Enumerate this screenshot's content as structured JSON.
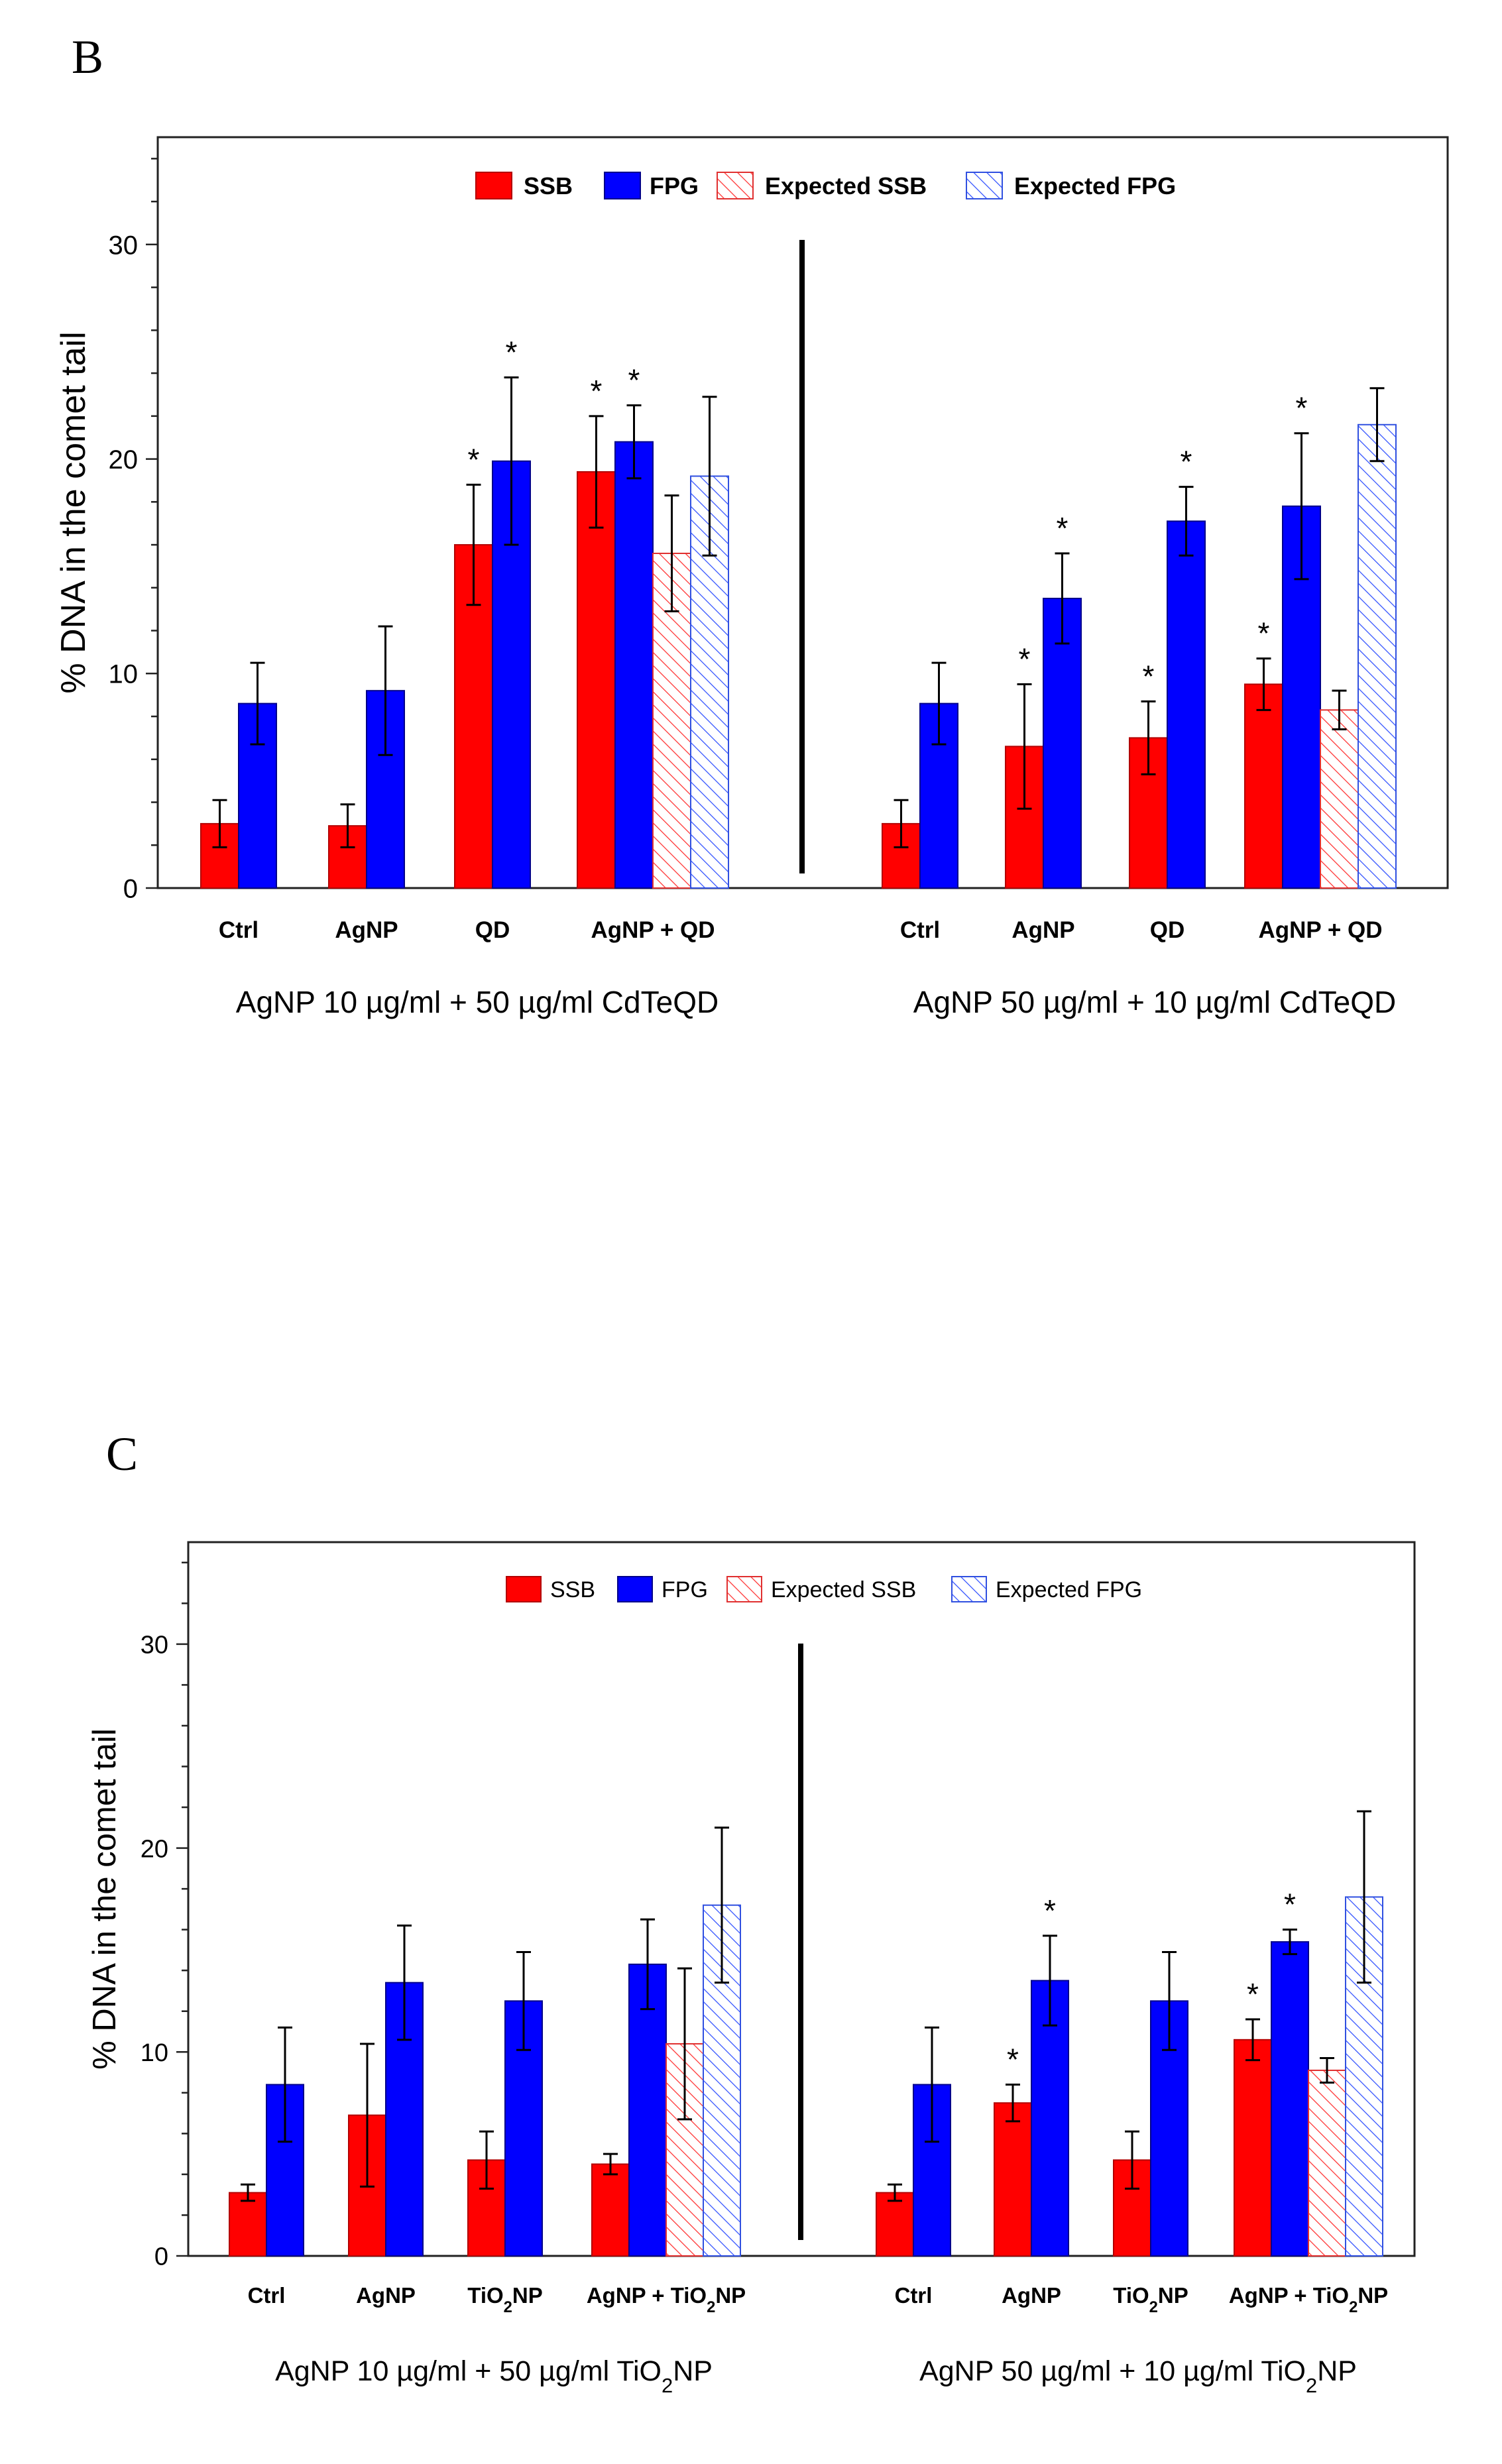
{
  "chart_data": [
    {
      "panel_label": "B",
      "type": "bar",
      "ylabel": "% DNA in the comet tail",
      "ylim": [
        0,
        35
      ],
      "yticks": [
        0,
        10,
        20,
        30
      ],
      "legend": [
        "SSB",
        "FPG",
        "Expected SSB",
        "Expected FPG"
      ],
      "groups": [
        {
          "label": "AgNP 10 µg/ml + 50 µg/ml CdTeQD",
          "categories": [
            {
              "label": "Ctrl",
              "bars": [
                {
                  "series": "SSB",
                  "value": 3.0,
                  "err": 1.1,
                  "star": false
                },
                {
                  "series": "FPG",
                  "value": 8.6,
                  "err": 1.9,
                  "star": false
                }
              ]
            },
            {
              "label": "AgNP",
              "bars": [
                {
                  "series": "SSB",
                  "value": 2.9,
                  "err": 1.0,
                  "star": false
                },
                {
                  "series": "FPG",
                  "value": 9.2,
                  "err": 3.0,
                  "star": false
                }
              ]
            },
            {
              "label": "QD",
              "bars": [
                {
                  "series": "SSB",
                  "value": 16.0,
                  "err": 2.8,
                  "star": true
                },
                {
                  "series": "FPG",
                  "value": 19.9,
                  "err": 3.9,
                  "star": true
                }
              ]
            },
            {
              "label": "AgNP + QD",
              "bars": [
                {
                  "series": "SSB",
                  "value": 19.4,
                  "err": 2.6,
                  "star": true
                },
                {
                  "series": "FPG",
                  "value": 20.8,
                  "err": 1.7,
                  "star": true
                },
                {
                  "series": "Expected SSB",
                  "value": 15.6,
                  "err": 2.7,
                  "star": false
                },
                {
                  "series": "Expected FPG",
                  "value": 19.2,
                  "err": 3.7,
                  "star": false
                }
              ]
            }
          ]
        },
        {
          "label": "AgNP 50 µg/ml + 10 µg/ml CdTeQD",
          "categories": [
            {
              "label": "Ctrl",
              "bars": [
                {
                  "series": "SSB",
                  "value": 3.0,
                  "err": 1.1,
                  "star": false
                },
                {
                  "series": "FPG",
                  "value": 8.6,
                  "err": 1.9,
                  "star": false
                }
              ]
            },
            {
              "label": "AgNP",
              "bars": [
                {
                  "series": "SSB",
                  "value": 6.6,
                  "err": 2.9,
                  "star": true
                },
                {
                  "series": "FPG",
                  "value": 13.5,
                  "err": 2.1,
                  "star": true
                }
              ]
            },
            {
              "label": "QD",
              "bars": [
                {
                  "series": "SSB",
                  "value": 7.0,
                  "err": 1.7,
                  "star": true
                },
                {
                  "series": "FPG",
                  "value": 17.1,
                  "err": 1.6,
                  "star": true
                }
              ]
            },
            {
              "label": "AgNP + QD",
              "bars": [
                {
                  "series": "SSB",
                  "value": 9.5,
                  "err": 1.2,
                  "star": true
                },
                {
                  "series": "FPG",
                  "value": 17.8,
                  "err": 3.4,
                  "star": true
                },
                {
                  "series": "Expected SSB",
                  "value": 8.3,
                  "err": 0.9,
                  "star": false
                },
                {
                  "series": "Expected FPG",
                  "value": 21.6,
                  "err": 1.7,
                  "star": false
                }
              ]
            }
          ]
        }
      ]
    },
    {
      "panel_label": "C",
      "type": "bar",
      "ylabel": "% DNA in the comet tail",
      "ylim": [
        0,
        35
      ],
      "yticks": [
        0,
        10,
        20,
        30
      ],
      "legend": [
        "SSB",
        "FPG",
        "Expected SSB",
        "Expected FPG"
      ],
      "groups": [
        {
          "label": "AgNP 10 µg/ml + 50 µg/ml TiO2NP",
          "categories": [
            {
              "label": "Ctrl",
              "bars": [
                {
                  "series": "SSB",
                  "value": 3.1,
                  "err": 0.4,
                  "star": false
                },
                {
                  "series": "FPG",
                  "value": 8.4,
                  "err": 2.8,
                  "star": false
                }
              ]
            },
            {
              "label": "AgNP",
              "bars": [
                {
                  "series": "SSB",
                  "value": 6.9,
                  "err": 3.5,
                  "star": false
                },
                {
                  "series": "FPG",
                  "value": 13.4,
                  "err": 2.8,
                  "star": false
                }
              ]
            },
            {
              "label": "TiO2NP",
              "bars": [
                {
                  "series": "SSB",
                  "value": 4.7,
                  "err": 1.4,
                  "star": false
                },
                {
                  "series": "FPG",
                  "value": 12.5,
                  "err": 2.4,
                  "star": false
                }
              ]
            },
            {
              "label": "AgNP + TiO2NP",
              "bars": [
                {
                  "series": "SSB",
                  "value": 4.5,
                  "err": 0.5,
                  "star": false
                },
                {
                  "series": "FPG",
                  "value": 14.3,
                  "err": 2.2,
                  "star": false
                },
                {
                  "series": "Expected SSB",
                  "value": 10.4,
                  "err": 3.7,
                  "star": false
                },
                {
                  "series": "Expected FPG",
                  "value": 17.2,
                  "err": 3.8,
                  "star": false
                }
              ]
            }
          ]
        },
        {
          "label": "AgNP 50 µg/ml + 10 µg/ml TiO2NP",
          "categories": [
            {
              "label": "Ctrl",
              "bars": [
                {
                  "series": "SSB",
                  "value": 3.1,
                  "err": 0.4,
                  "star": false
                },
                {
                  "series": "FPG",
                  "value": 8.4,
                  "err": 2.8,
                  "star": false
                }
              ]
            },
            {
              "label": "AgNP",
              "bars": [
                {
                  "series": "SSB",
                  "value": 7.5,
                  "err": 0.9,
                  "star": true
                },
                {
                  "series": "FPG",
                  "value": 13.5,
                  "err": 2.2,
                  "star": true
                }
              ]
            },
            {
              "label": "TiO2NP",
              "bars": [
                {
                  "series": "SSB",
                  "value": 4.7,
                  "err": 1.4,
                  "star": false
                },
                {
                  "series": "FPG",
                  "value": 12.5,
                  "err": 2.4,
                  "star": false
                }
              ]
            },
            {
              "label": "AgNP + TiO2NP",
              "bars": [
                {
                  "series": "SSB",
                  "value": 10.6,
                  "err": 1.0,
                  "star": true
                },
                {
                  "series": "FPG",
                  "value": 15.4,
                  "err": 0.6,
                  "star": true
                },
                {
                  "series": "Expected SSB",
                  "value": 9.1,
                  "err": 0.6,
                  "star": false
                },
                {
                  "series": "Expected FPG",
                  "value": 17.6,
                  "err": 4.2,
                  "star": false
                }
              ]
            }
          ]
        }
      ]
    }
  ],
  "colors": {
    "ssb": "#ff0000",
    "fpg": "#0000ff",
    "ssb_stroke": "#b30000",
    "fpg_stroke": "#00008b",
    "axis": "#000000"
  }
}
